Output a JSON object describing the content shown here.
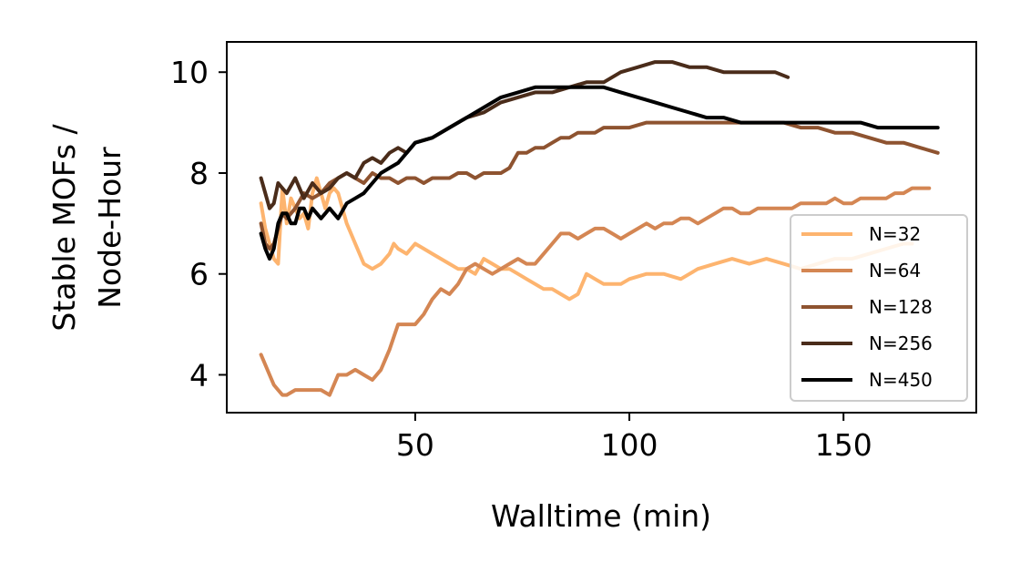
{
  "chart_data": {
    "type": "line",
    "title": "",
    "xlabel": "Walltime (min)",
    "ylabel_lines": [
      "Stable MOFs /",
      "Node-Hour"
    ],
    "xlim": [
      6,
      181
    ],
    "ylim": [
      3.25,
      10.6
    ],
    "xticks": [
      50,
      100,
      150
    ],
    "yticks": [
      4,
      6,
      8,
      10
    ],
    "grid": false,
    "legend_position": "lower-right",
    "series": [
      {
        "name": "N=32",
        "color": "#fdb46f",
        "x": [
          14,
          15,
          16,
          17,
          18,
          19,
          20,
          21,
          22,
          23,
          24,
          25,
          26,
          27,
          28,
          29,
          30,
          31,
          32,
          33,
          34,
          36,
          38,
          40,
          42,
          44,
          45,
          46,
          48,
          50,
          52,
          54,
          56,
          58,
          60,
          62,
          64,
          66,
          68,
          70,
          72,
          74,
          76,
          78,
          80,
          82,
          84,
          86,
          88,
          90,
          92,
          94,
          96,
          98,
          100,
          104,
          108,
          112,
          116,
          120,
          124,
          128,
          132,
          136,
          140,
          144,
          148,
          152,
          156,
          160,
          164,
          166
        ],
        "y": [
          7.4,
          6.9,
          6.6,
          6.3,
          6.2,
          7.7,
          7.0,
          7.5,
          7.3,
          7.1,
          7.2,
          6.9,
          7.6,
          7.9,
          7.6,
          7.3,
          7.6,
          7.7,
          7.6,
          7.3,
          7.0,
          6.6,
          6.2,
          6.1,
          6.2,
          6.4,
          6.6,
          6.5,
          6.4,
          6.6,
          6.5,
          6.4,
          6.3,
          6.2,
          6.1,
          6.1,
          6.0,
          6.3,
          6.2,
          6.1,
          6.1,
          6.0,
          5.9,
          5.8,
          5.7,
          5.7,
          5.6,
          5.5,
          5.6,
          6.0,
          5.9,
          5.8,
          5.8,
          5.8,
          5.9,
          6.0,
          6.0,
          5.9,
          6.1,
          6.2,
          6.3,
          6.2,
          6.3,
          6.2,
          6.1,
          6.2,
          6.3,
          6.3,
          6.4,
          6.5,
          6.6,
          6.6
        ]
      },
      {
        "name": "N=64",
        "color": "#d48653",
        "x": [
          14,
          15,
          16,
          17,
          18,
          19,
          20,
          22,
          24,
          26,
          28,
          30,
          32,
          34,
          36,
          38,
          40,
          42,
          44,
          46,
          48,
          50,
          52,
          54,
          56,
          58,
          60,
          62,
          64,
          66,
          68,
          70,
          72,
          74,
          76,
          78,
          80,
          82,
          84,
          86,
          88,
          90,
          92,
          94,
          96,
          98,
          100,
          102,
          104,
          106,
          108,
          110,
          112,
          114,
          116,
          118,
          120,
          122,
          124,
          126,
          128,
          130,
          132,
          134,
          136,
          138,
          140,
          142,
          144,
          146,
          148,
          150,
          152,
          154,
          156,
          158,
          160,
          162,
          164,
          166,
          168,
          170
        ],
        "y": [
          4.4,
          4.2,
          4.0,
          3.8,
          3.7,
          3.6,
          3.6,
          3.7,
          3.7,
          3.7,
          3.7,
          3.6,
          4.0,
          4.0,
          4.1,
          4.0,
          3.9,
          4.1,
          4.5,
          5.0,
          5.0,
          5.0,
          5.2,
          5.5,
          5.7,
          5.6,
          5.8,
          6.1,
          6.2,
          6.1,
          6.0,
          6.1,
          6.2,
          6.3,
          6.2,
          6.2,
          6.4,
          6.6,
          6.8,
          6.8,
          6.7,
          6.8,
          6.9,
          6.9,
          6.8,
          6.7,
          6.8,
          6.9,
          7.0,
          6.9,
          7.0,
          7.0,
          7.1,
          7.1,
          7.0,
          7.1,
          7.2,
          7.3,
          7.3,
          7.2,
          7.2,
          7.3,
          7.3,
          7.3,
          7.3,
          7.3,
          7.4,
          7.4,
          7.4,
          7.4,
          7.5,
          7.4,
          7.4,
          7.5,
          7.5,
          7.5,
          7.5,
          7.6,
          7.6,
          7.7,
          7.7,
          7.7
        ]
      },
      {
        "name": "N=128",
        "color": "#8e5330",
        "x": [
          14,
          15,
          16,
          17,
          18,
          19,
          20,
          22,
          24,
          26,
          28,
          30,
          32,
          34,
          36,
          38,
          40,
          42,
          44,
          46,
          48,
          50,
          52,
          54,
          56,
          58,
          60,
          62,
          64,
          66,
          68,
          70,
          72,
          74,
          76,
          78,
          80,
          82,
          84,
          86,
          88,
          90,
          92,
          94,
          96,
          98,
          100,
          104,
          108,
          112,
          116,
          120,
          124,
          128,
          132,
          136,
          140,
          144,
          148,
          152,
          156,
          160,
          164,
          168,
          172
        ],
        "y": [
          7.0,
          6.6,
          6.5,
          6.6,
          6.9,
          7.2,
          7.1,
          7.3,
          7.6,
          7.5,
          7.6,
          7.8,
          7.9,
          8.0,
          7.9,
          7.8,
          8.0,
          7.9,
          7.9,
          7.8,
          7.9,
          7.9,
          7.8,
          7.9,
          7.9,
          7.9,
          8.0,
          8.0,
          7.9,
          8.0,
          8.0,
          8.0,
          8.1,
          8.4,
          8.4,
          8.5,
          8.5,
          8.6,
          8.7,
          8.7,
          8.8,
          8.8,
          8.8,
          8.9,
          8.9,
          8.9,
          8.9,
          9.0,
          9.0,
          9.0,
          9.0,
          9.0,
          9.0,
          9.0,
          9.0,
          9.0,
          8.9,
          8.9,
          8.8,
          8.8,
          8.7,
          8.6,
          8.6,
          8.5,
          8.4
        ]
      },
      {
        "name": "N=256",
        "color": "#4a2c1a",
        "x": [
          14,
          15,
          16,
          17,
          18,
          19,
          20,
          22,
          24,
          26,
          28,
          30,
          32,
          34,
          36,
          38,
          40,
          42,
          44,
          46,
          48,
          50,
          54,
          58,
          62,
          66,
          70,
          74,
          78,
          82,
          86,
          90,
          94,
          98,
          102,
          106,
          110,
          114,
          118,
          122,
          126,
          130,
          134,
          137
        ],
        "y": [
          7.9,
          7.6,
          7.3,
          7.4,
          7.8,
          7.7,
          7.6,
          7.9,
          7.5,
          7.8,
          7.6,
          7.7,
          7.9,
          8.0,
          7.9,
          8.2,
          8.3,
          8.2,
          8.4,
          8.5,
          8.4,
          8.6,
          8.7,
          8.9,
          9.1,
          9.2,
          9.4,
          9.5,
          9.6,
          9.6,
          9.7,
          9.8,
          9.8,
          10.0,
          10.1,
          10.2,
          10.2,
          10.1,
          10.1,
          10.0,
          10.0,
          10.0,
          10.0,
          9.9
        ]
      },
      {
        "name": "N=450",
        "color": "#000000",
        "x": [
          14,
          15,
          16,
          17,
          18,
          19,
          20,
          21,
          22,
          23,
          24,
          25,
          26,
          27,
          28,
          29,
          30,
          31,
          32,
          34,
          36,
          38,
          40,
          42,
          44,
          46,
          48,
          50,
          54,
          58,
          62,
          66,
          70,
          74,
          78,
          82,
          86,
          90,
          94,
          98,
          102,
          106,
          110,
          114,
          118,
          122,
          126,
          130,
          134,
          138,
          142,
          146,
          150,
          154,
          158,
          162,
          166,
          170,
          172
        ],
        "y": [
          6.8,
          6.5,
          6.3,
          6.5,
          7.0,
          7.2,
          7.2,
          7.0,
          7.0,
          7.3,
          7.3,
          7.1,
          7.3,
          7.2,
          7.1,
          7.2,
          7.3,
          7.2,
          7.1,
          7.4,
          7.5,
          7.6,
          7.8,
          8.0,
          8.1,
          8.2,
          8.4,
          8.6,
          8.7,
          8.9,
          9.1,
          9.3,
          9.5,
          9.6,
          9.7,
          9.7,
          9.7,
          9.7,
          9.7,
          9.6,
          9.5,
          9.4,
          9.3,
          9.2,
          9.1,
          9.1,
          9.0,
          9.0,
          9.0,
          9.0,
          9.0,
          9.0,
          9.0,
          9.0,
          8.9,
          8.9,
          8.9,
          8.9,
          8.9
        ]
      }
    ]
  }
}
